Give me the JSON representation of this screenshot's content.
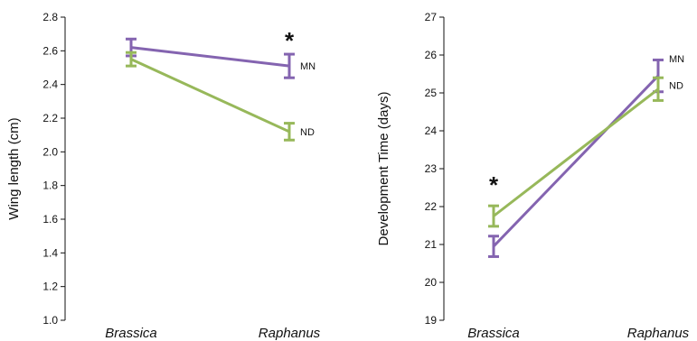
{
  "chart_data": [
    {
      "type": "line",
      "title": "",
      "categories": [
        "Brassica",
        "Raphanus"
      ],
      "ylabel": "Wing length (cm)",
      "xlabel": "",
      "ylim": [
        1.0,
        2.8
      ],
      "yticks": [
        1.0,
        1.2,
        1.4,
        1.6,
        1.8,
        2.0,
        2.2,
        2.4,
        2.6,
        2.8
      ],
      "grid": false,
      "series": [
        {
          "name": "MN",
          "color": "#8464b0",
          "values": [
            2.62,
            2.51
          ],
          "error": [
            0.05,
            0.07
          ]
        },
        {
          "name": "ND",
          "color": "#97b85a",
          "values": [
            2.55,
            2.12
          ],
          "error": [
            0.04,
            0.05
          ]
        }
      ],
      "annotations": [
        {
          "category": "Raphanus",
          "text": "*"
        }
      ]
    },
    {
      "type": "line",
      "title": "",
      "categories": [
        "Brassica",
        "Raphanus"
      ],
      "ylabel": "Development Time (days)",
      "xlabel": "",
      "ylim": [
        19,
        27
      ],
      "yticks": [
        19,
        20,
        21,
        22,
        23,
        24,
        25,
        26,
        27
      ],
      "grid": false,
      "series": [
        {
          "name": "MN",
          "color": "#8464b0",
          "values": [
            20.95,
            25.45
          ],
          "error": [
            0.27,
            0.42
          ]
        },
        {
          "name": "ND",
          "color": "#97b85a",
          "values": [
            21.75,
            25.1
          ],
          "error": [
            0.27,
            0.3
          ]
        }
      ],
      "annotations": [
        {
          "category": "Brassica",
          "text": "*"
        }
      ]
    }
  ]
}
